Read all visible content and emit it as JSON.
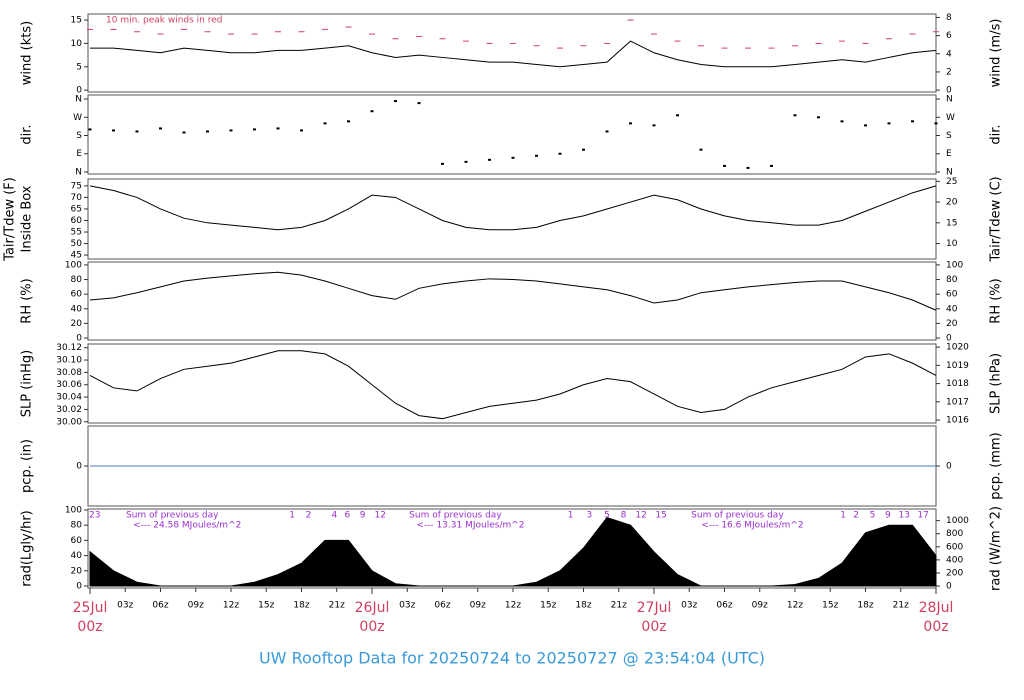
{
  "title": "UW Rooftop Data for 20250724  to  20250727 @ 23:54:04  (UTC)",
  "x_axis": {
    "xlim": [
      0,
      72
    ],
    "x": [
      0,
      2,
      4,
      6,
      8,
      10,
      12,
      14,
      16,
      18,
      20,
      22,
      24,
      26,
      28,
      30,
      32,
      34,
      36,
      38,
      40,
      42,
      44,
      46,
      48,
      50,
      52,
      54,
      56,
      58,
      60,
      62,
      64,
      66,
      68,
      70,
      72
    ],
    "xticks": [
      {
        "value": 3,
        "label": "03z"
      },
      {
        "value": 6,
        "label": "06z"
      },
      {
        "value": 9,
        "label": "09z"
      },
      {
        "value": 12,
        "label": "12z"
      },
      {
        "value": 15,
        "label": "15z"
      },
      {
        "value": 18,
        "label": "18z"
      },
      {
        "value": 21,
        "label": "21z"
      },
      {
        "value": 27,
        "label": "03z"
      },
      {
        "value": 30,
        "label": "06z"
      },
      {
        "value": 33,
        "label": "09z"
      },
      {
        "value": 36,
        "label": "12z"
      },
      {
        "value": 39,
        "label": "15z"
      },
      {
        "value": 42,
        "label": "18z"
      },
      {
        "value": 45,
        "label": "21z"
      },
      {
        "value": 51,
        "label": "03z"
      },
      {
        "value": 54,
        "label": "06z"
      },
      {
        "value": 57,
        "label": "09z"
      },
      {
        "value": 60,
        "label": "12z"
      },
      {
        "value": 63,
        "label": "15z"
      },
      {
        "value": 66,
        "label": "18z"
      },
      {
        "value": 69,
        "label": "21z"
      }
    ],
    "date_ticks": [
      {
        "value": 0,
        "label": "25Jul",
        "hour": "00z"
      },
      {
        "value": 24,
        "label": "26Jul",
        "hour": "00z"
      },
      {
        "value": 48,
        "label": "27Jul",
        "hour": "00z"
      },
      {
        "value": 72,
        "label": "28Jul",
        "hour": "00z"
      }
    ],
    "date_color": "#d04060"
  },
  "chart_data": [
    {
      "type": "line",
      "ylabel": "wind (kts)",
      "y2label": "wind (m/s)",
      "ylim": [
        -0.4,
        16.3
      ],
      "yticks": [
        0,
        5,
        10,
        15
      ],
      "y2lim": [
        -0.21,
        8.38
      ],
      "y2ticks": [
        0,
        2,
        4,
        6,
        8
      ],
      "annotation": "10 min. peak winds in red",
      "annotation_color": "#d04060",
      "series": [
        {
          "color": "#000000",
          "style": "line",
          "values": [
            9,
            9,
            8.5,
            8,
            9,
            8.5,
            8,
            8,
            8.5,
            8.5,
            9,
            9.5,
            8,
            7,
            7.5,
            7,
            6.5,
            6,
            6,
            5.5,
            5,
            5.5,
            6,
            10.5,
            8,
            6.5,
            5.5,
            5,
            5,
            5,
            5.5,
            6,
            6.5,
            6,
            7,
            8,
            8.5
          ]
        },
        {
          "color": "#d04060",
          "style": "dash",
          "values": [
            13,
            13,
            12.5,
            12,
            13,
            12.5,
            12,
            12,
            12.5,
            12.5,
            13,
            13.5,
            12,
            11,
            11.5,
            11,
            10.5,
            10,
            10,
            9.5,
            9,
            9.5,
            10,
            15,
            12,
            10.5,
            9.5,
            9,
            9,
            9,
            9.5,
            10,
            10.5,
            10,
            11,
            12,
            12.5
          ]
        }
      ]
    },
    {
      "type": "scatter",
      "ylabel": "dir.",
      "y2label": "dir.",
      "ylim": [
        -10,
        380
      ],
      "yticks": [
        {
          "value": 0,
          "label": "N"
        },
        {
          "value": 90,
          "label": "E"
        },
        {
          "value": 180,
          "label": "S"
        },
        {
          "value": 270,
          "label": "W"
        },
        {
          "value": 360,
          "label": "N"
        }
      ],
      "y2lim": [
        -10,
        380
      ],
      "y2ticks": [
        {
          "value": 0,
          "label": "N"
        },
        {
          "value": 90,
          "label": "E"
        },
        {
          "value": 180,
          "label": "S"
        },
        {
          "value": 270,
          "label": "W"
        },
        {
          "value": 360,
          "label": "N"
        }
      ],
      "series": [
        {
          "color": "#000000",
          "values": [
            210,
            205,
            200,
            215,
            195,
            200,
            205,
            210,
            215,
            205,
            240,
            250,
            300,
            350,
            340,
            40,
            50,
            60,
            70,
            80,
            90,
            110,
            200,
            240,
            230,
            280,
            110,
            30,
            20,
            30,
            280,
            270,
            250,
            230,
            240,
            250,
            240
          ]
        }
      ]
    },
    {
      "type": "line",
      "ylabel": "Tair/Tdew (F)",
      "ylabel2": "Inside Box",
      "y2label": "Tair/Tdew (C)",
      "ylim": [
        43.3,
        78
      ],
      "yticks": [
        45,
        50,
        55,
        60,
        65,
        70,
        75
      ],
      "y2lim": [
        6.28,
        25.56
      ],
      "y2ticks": [
        10,
        15,
        20,
        25
      ],
      "series": [
        {
          "color": "#000000",
          "style": "line",
          "values": [
            75,
            73,
            70,
            65,
            61,
            59,
            58,
            57,
            56,
            57,
            60,
            65,
            71,
            70,
            65,
            60,
            57,
            56,
            56,
            57,
            60,
            62,
            65,
            68,
            71,
            69,
            65,
            62,
            60,
            59,
            58,
            58,
            60,
            64,
            68,
            72,
            75
          ]
        }
      ]
    },
    {
      "type": "line",
      "ylabel": "RH (%)",
      "y2label": "RH (%)",
      "ylim": [
        -2.7,
        104
      ],
      "yticks": [
        0,
        20,
        40,
        60,
        80,
        100
      ],
      "y2lim": [
        -2.7,
        104
      ],
      "y2ticks": [
        0,
        20,
        40,
        60,
        80,
        100
      ],
      "series": [
        {
          "color": "#000000",
          "style": "line",
          "values": [
            52,
            55,
            62,
            70,
            78,
            82,
            85,
            88,
            90,
            86,
            78,
            68,
            58,
            53,
            68,
            74,
            78,
            81,
            80,
            78,
            74,
            70,
            66,
            58,
            48,
            52,
            62,
            66,
            70,
            73,
            76,
            78,
            78,
            70,
            62,
            52,
            38
          ]
        }
      ]
    },
    {
      "type": "line",
      "ylabel": "SLP (inHg)",
      "y2label": "SLP (hPa)",
      "ylim": [
        29.998,
        30.126
      ],
      "yticks": [
        {
          "value": 30,
          "label": "30.00"
        },
        {
          "value": 30.02,
          "label": "30.02"
        },
        {
          "value": 30.04,
          "label": "30.04"
        },
        {
          "value": 30.06,
          "label": "30.06"
        },
        {
          "value": 30.08,
          "label": "30.08"
        },
        {
          "value": 30.1,
          "label": "30.10"
        },
        {
          "value": 30.12,
          "label": "30.12"
        }
      ],
      "y2lim": [
        1015.84,
        1020.17
      ],
      "y2ticks": [
        1016,
        1017,
        1018,
        1019,
        1020
      ],
      "series": [
        {
          "color": "#000000",
          "style": "line",
          "values": [
            30.075,
            30.055,
            30.05,
            30.07,
            30.085,
            30.09,
            30.095,
            30.105,
            30.115,
            30.115,
            30.11,
            30.09,
            30.06,
            30.03,
            30.01,
            30.005,
            30.015,
            30.025,
            30.03,
            30.035,
            30.045,
            30.06,
            30.07,
            30.065,
            30.045,
            30.025,
            30.015,
            30.02,
            30.04,
            30.055,
            30.065,
            30.075,
            30.085,
            30.105,
            30.11,
            30.095,
            30.075
          ]
        }
      ]
    },
    {
      "type": "line",
      "ylabel": "pcp. (in)",
      "y2label": "pcp. (mm)",
      "ylim": [
        -1,
        1
      ],
      "yticks": [
        0
      ],
      "y2lim": [
        -25.4,
        25.4
      ],
      "y2ticks": [
        0
      ],
      "series": [
        {
          "color": "#4a78c0",
          "style": "line",
          "values": [
            0,
            0,
            0,
            0,
            0,
            0,
            0,
            0,
            0,
            0,
            0,
            0,
            0,
            0,
            0,
            0,
            0,
            0,
            0,
            0,
            0,
            0,
            0,
            0,
            0,
            0,
            0,
            0,
            0,
            0,
            0,
            0,
            0,
            0,
            0,
            0,
            0
          ]
        }
      ]
    },
    {
      "type": "area",
      "ylabel": "rad(Lgly/hr)",
      "y2label": "rad (W/m^2)",
      "ylim": [
        -2.6,
        101.3
      ],
      "yticks": [
        0,
        20,
        40,
        60,
        80,
        100
      ],
      "y2lim": [
        -30,
        1178
      ],
      "y2ticks": [
        0,
        200,
        400,
        600,
        800,
        1000
      ],
      "annotation_color": "#9a30d0",
      "hour_labels": [
        {
          "value": 0.4,
          "label": "23"
        },
        {
          "value": 17.2,
          "label": "1"
        },
        {
          "value": 18.6,
          "label": "2"
        },
        {
          "value": 20.8,
          "label": "4"
        },
        {
          "value": 21.9,
          "label": "6"
        },
        {
          "value": 23.2,
          "label": "9"
        },
        {
          "value": 24.7,
          "label": "12"
        },
        {
          "value": 40.9,
          "label": "1"
        },
        {
          "value": 42.5,
          "label": "3"
        },
        {
          "value": 44,
          "label": "5"
        },
        {
          "value": 45.4,
          "label": "8"
        },
        {
          "value": 46.9,
          "label": "12"
        },
        {
          "value": 48.6,
          "label": "15"
        },
        {
          "value": 64.1,
          "label": "1"
        },
        {
          "value": 65.2,
          "label": "2"
        },
        {
          "value": 66.6,
          "label": "5"
        },
        {
          "value": 67.9,
          "label": "9"
        },
        {
          "value": 69.3,
          "label": "13"
        },
        {
          "value": 70.9,
          "label": "17"
        }
      ],
      "daily_sums": [
        {
          "x": 7,
          "title": "Sum of previous day",
          "text": "<--- 24.58 MJoules/m^2"
        },
        {
          "x": 31.1,
          "title": "Sum of previous day",
          "text": "<--- 13.31 MJoules/m^2"
        },
        {
          "x": 55.1,
          "title": "Sum of previous day",
          "text": "<--- 16.6 MJoules/m^2"
        }
      ],
      "series": [
        {
          "color": "#000000",
          "values": [
            45,
            20,
            5,
            0,
            0,
            0,
            0,
            5,
            15,
            30,
            60,
            60,
            20,
            3,
            0,
            0,
            0,
            0,
            0,
            5,
            20,
            50,
            90,
            80,
            45,
            15,
            0,
            0,
            0,
            0,
            2,
            10,
            30,
            70,
            80,
            80,
            40
          ]
        }
      ]
    }
  ]
}
